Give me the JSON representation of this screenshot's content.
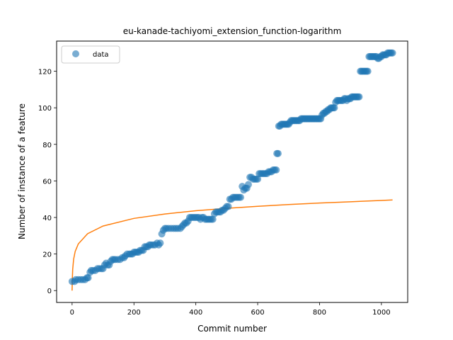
{
  "chart_data": {
    "type": "scatter",
    "title": "eu-kanade-tachiyomi_extension_function-logarithm",
    "xlabel": "Commit number",
    "ylabel": "Number of instance of a feature",
    "xlim": [
      -50,
      1085
    ],
    "ylim": [
      -6.5,
      136.5
    ],
    "xticks": [
      0,
      200,
      400,
      600,
      800,
      1000
    ],
    "yticks": [
      0,
      20,
      40,
      60,
      80,
      100,
      120
    ],
    "grid": false,
    "legend_position": "top-left",
    "series": [
      {
        "name": "data",
        "kind": "scatter",
        "color": "#1f77b4",
        "points": [
          [
            0,
            5
          ],
          [
            8,
            5
          ],
          [
            12,
            6
          ],
          [
            20,
            6
          ],
          [
            28,
            6
          ],
          [
            35,
            6
          ],
          [
            42,
            6
          ],
          [
            48,
            7
          ],
          [
            52,
            7
          ],
          [
            58,
            10
          ],
          [
            62,
            11
          ],
          [
            68,
            11
          ],
          [
            75,
            11
          ],
          [
            82,
            12
          ],
          [
            88,
            12
          ],
          [
            95,
            12
          ],
          [
            100,
            12
          ],
          [
            105,
            14
          ],
          [
            110,
            15
          ],
          [
            115,
            14
          ],
          [
            120,
            14
          ],
          [
            125,
            16
          ],
          [
            130,
            17
          ],
          [
            135,
            17
          ],
          [
            140,
            17
          ],
          [
            148,
            17
          ],
          [
            155,
            17
          ],
          [
            162,
            18
          ],
          [
            168,
            18
          ],
          [
            172,
            19
          ],
          [
            178,
            20
          ],
          [
            185,
            20
          ],
          [
            190,
            20
          ],
          [
            195,
            20
          ],
          [
            200,
            21
          ],
          [
            205,
            21
          ],
          [
            210,
            21
          ],
          [
            215,
            21
          ],
          [
            220,
            22
          ],
          [
            225,
            22
          ],
          [
            230,
            22
          ],
          [
            235,
            24
          ],
          [
            240,
            24
          ],
          [
            245,
            24
          ],
          [
            250,
            25
          ],
          [
            255,
            25
          ],
          [
            262,
            25
          ],
          [
            268,
            25
          ],
          [
            275,
            26
          ],
          [
            280,
            25
          ],
          [
            285,
            26
          ],
          [
            290,
            31
          ],
          [
            295,
            33
          ],
          [
            300,
            34
          ],
          [
            305,
            34
          ],
          [
            312,
            34
          ],
          [
            320,
            34
          ],
          [
            328,
            34
          ],
          [
            335,
            34
          ],
          [
            342,
            34
          ],
          [
            350,
            34
          ],
          [
            355,
            35
          ],
          [
            360,
            36
          ],
          [
            365,
            37
          ],
          [
            370,
            37
          ],
          [
            375,
            38
          ],
          [
            380,
            40
          ],
          [
            385,
            40
          ],
          [
            390,
            40
          ],
          [
            395,
            40
          ],
          [
            400,
            40
          ],
          [
            405,
            40
          ],
          [
            410,
            40
          ],
          [
            415,
            39
          ],
          [
            420,
            40
          ],
          [
            425,
            40
          ],
          [
            430,
            39
          ],
          [
            435,
            39
          ],
          [
            440,
            39
          ],
          [
            445,
            39
          ],
          [
            450,
            39
          ],
          [
            455,
            39
          ],
          [
            460,
            42
          ],
          [
            465,
            43
          ],
          [
            470,
            43
          ],
          [
            475,
            43
          ],
          [
            480,
            43
          ],
          [
            485,
            44
          ],
          [
            490,
            44
          ],
          [
            495,
            45
          ],
          [
            500,
            46
          ],
          [
            505,
            46
          ],
          [
            510,
            50
          ],
          [
            515,
            50
          ],
          [
            520,
            51
          ],
          [
            525,
            51
          ],
          [
            530,
            51
          ],
          [
            535,
            51
          ],
          [
            540,
            51
          ],
          [
            545,
            51
          ],
          [
            550,
            57
          ],
          [
            555,
            55
          ],
          [
            560,
            56
          ],
          [
            565,
            56
          ],
          [
            570,
            58
          ],
          [
            575,
            62
          ],
          [
            580,
            62
          ],
          [
            585,
            61
          ],
          [
            590,
            61
          ],
          [
            595,
            61
          ],
          [
            600,
            61
          ],
          [
            605,
            64
          ],
          [
            610,
            64
          ],
          [
            615,
            64
          ],
          [
            620,
            64
          ],
          [
            625,
            64
          ],
          [
            630,
            64
          ],
          [
            635,
            65
          ],
          [
            640,
            65
          ],
          [
            645,
            65
          ],
          [
            650,
            66
          ],
          [
            655,
            66
          ],
          [
            660,
            66
          ],
          [
            662,
            75
          ],
          [
            666,
            75
          ],
          [
            668,
            90
          ],
          [
            672,
            90
          ],
          [
            676,
            91
          ],
          [
            680,
            91
          ],
          [
            684,
            91
          ],
          [
            688,
            91
          ],
          [
            692,
            91
          ],
          [
            696,
            91
          ],
          [
            700,
            91
          ],
          [
            704,
            92
          ],
          [
            708,
            93
          ],
          [
            712,
            93
          ],
          [
            716,
            93
          ],
          [
            720,
            93
          ],
          [
            724,
            93
          ],
          [
            728,
            93
          ],
          [
            732,
            93
          ],
          [
            736,
            93
          ],
          [
            740,
            94
          ],
          [
            744,
            94
          ],
          [
            748,
            94
          ],
          [
            752,
            94
          ],
          [
            756,
            94
          ],
          [
            760,
            94
          ],
          [
            764,
            94
          ],
          [
            768,
            94
          ],
          [
            772,
            94
          ],
          [
            776,
            94
          ],
          [
            780,
            94
          ],
          [
            784,
            94
          ],
          [
            788,
            94
          ],
          [
            792,
            94
          ],
          [
            796,
            94
          ],
          [
            800,
            94
          ],
          [
            804,
            94
          ],
          [
            808,
            96
          ],
          [
            812,
            97
          ],
          [
            816,
            97
          ],
          [
            820,
            98
          ],
          [
            824,
            98
          ],
          [
            828,
            99
          ],
          [
            832,
            99
          ],
          [
            836,
            100
          ],
          [
            840,
            100
          ],
          [
            844,
            100
          ],
          [
            848,
            100
          ],
          [
            852,
            103
          ],
          [
            856,
            104
          ],
          [
            860,
            104
          ],
          [
            864,
            104
          ],
          [
            868,
            104
          ],
          [
            872,
            104
          ],
          [
            876,
            104
          ],
          [
            880,
            105
          ],
          [
            884,
            105
          ],
          [
            888,
            104
          ],
          [
            892,
            105
          ],
          [
            896,
            105
          ],
          [
            900,
            105
          ],
          [
            904,
            106
          ],
          [
            908,
            106
          ],
          [
            912,
            106
          ],
          [
            916,
            106
          ],
          [
            920,
            106
          ],
          [
            924,
            106
          ],
          [
            928,
            106
          ],
          [
            932,
            120
          ],
          [
            936,
            120
          ],
          [
            940,
            120
          ],
          [
            944,
            120
          ],
          [
            948,
            120
          ],
          [
            952,
            120
          ],
          [
            956,
            120
          ],
          [
            960,
            128
          ],
          [
            964,
            128
          ],
          [
            968,
            128
          ],
          [
            972,
            128
          ],
          [
            976,
            128
          ],
          [
            980,
            128
          ],
          [
            984,
            128
          ],
          [
            988,
            127
          ],
          [
            992,
            127
          ],
          [
            996,
            128
          ],
          [
            1000,
            128
          ],
          [
            1004,
            129
          ],
          [
            1008,
            129
          ],
          [
            1012,
            129
          ],
          [
            1016,
            129
          ],
          [
            1020,
            130
          ],
          [
            1024,
            130
          ],
          [
            1028,
            130
          ],
          [
            1032,
            130
          ],
          [
            1036,
            130
          ]
        ]
      },
      {
        "kind": "line",
        "color": "#ff7f0e",
        "function": "log",
        "x": [
          0,
          1,
          2,
          5,
          10,
          20,
          50,
          100,
          200,
          300,
          400,
          500,
          600,
          700,
          800,
          900,
          1000,
          1036
        ],
        "y": [
          0.0,
          7.4,
          11.7,
          17.2,
          21.4,
          25.5,
          31.1,
          35.3,
          39.5,
          41.9,
          43.7,
          45.0,
          46.1,
          47.1,
          47.9,
          48.6,
          49.3,
          49.6
        ]
      }
    ]
  }
}
